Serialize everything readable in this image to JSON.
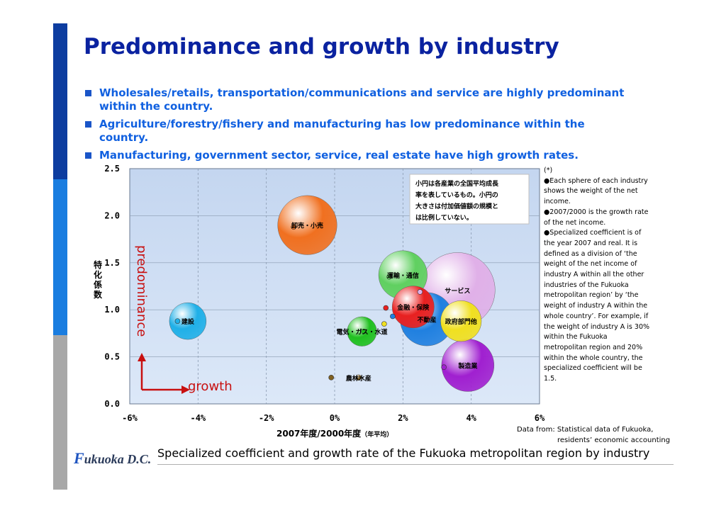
{
  "title": "Predominance and growth by industry",
  "bullets": [
    "Wholesales/retails, transportation/communications and service are highly predominant within the country.",
    "Agriculture/forestry/fishery and manufacturing has low predominance within the country.",
    "Manufacturing, government sector, service, real estate have high growth rates."
  ],
  "chart_data": {
    "type": "scatter",
    "xlabel": "2007年度/2000年度",
    "xlabel_suffix": "（年平均）",
    "ylabel": "特化係数",
    "xlim": [
      -6,
      6
    ],
    "ylim": [
      0.0,
      2.5
    ],
    "x_ticks": [
      "-6%",
      "-4%",
      "-2%",
      "0%",
      "2%",
      "4%",
      "6%"
    ],
    "y_ticks": [
      "0.0",
      "0.5",
      "1.0",
      "1.5",
      "2.0",
      "2.5"
    ],
    "grid": true,
    "inset_note": "小円は各産業の全国平均成長率を表しているもの。小円の大きさは付加価値額の規模とは比例していない。",
    "axis_annotation_x": "growth",
    "axis_annotation_y": "predominance",
    "bubbles": [
      {
        "name": "卸売・小売",
        "x": -0.8,
        "y": 1.9,
        "weight": 3.2,
        "color": "#f07020",
        "nat_x": -1.2,
        "nat_y": 1.88
      },
      {
        "name": "建設",
        "x": -4.3,
        "y": 0.88,
        "weight": 1.0,
        "color": "#20b0e8",
        "nat_x": -4.6,
        "nat_y": 0.88
      },
      {
        "name": "運輸・通信",
        "x": 2.0,
        "y": 1.37,
        "weight": 2.0,
        "color": "#60d060",
        "nat_x": 1.6,
        "nat_y": 1.35
      },
      {
        "name": "金融・保険",
        "x": 2.3,
        "y": 1.03,
        "weight": 1.4,
        "color": "#e82020",
        "nat_x": 1.5,
        "nat_y": 1.02
      },
      {
        "name": "サービス",
        "x": 3.6,
        "y": 1.21,
        "weight": 5.5,
        "color": "#e0b0e8",
        "nat_x": 2.5,
        "nat_y": 1.19
      },
      {
        "name": "不動産",
        "x": 2.7,
        "y": 0.9,
        "weight": 2.5,
        "color": "#2080e0",
        "nat_x": 1.7,
        "nat_y": 0.93
      },
      {
        "name": "政府部門他",
        "x": 3.7,
        "y": 0.88,
        "weight": 1.3,
        "color": "#f0e020",
        "nat_x": 1.45,
        "nat_y": 0.85
      },
      {
        "name": "電気・ガス・水道",
        "x": 0.8,
        "y": 0.77,
        "weight": 0.55,
        "color": "#20c020",
        "nat_x": 0.85,
        "nat_y": 0.77
      },
      {
        "name": "製造業",
        "x": 3.9,
        "y": 0.41,
        "weight": 2.4,
        "color": "#a020d0",
        "nat_x": 3.2,
        "nat_y": 0.39
      },
      {
        "name": "農林水産",
        "x": 0.7,
        "y": 0.28,
        "weight": 0.1,
        "color": "#806020",
        "nat_x": -0.1,
        "nat_y": 0.28
      }
    ]
  },
  "notes": [
    "(*)",
    "●Each sphere of each industry shows the weight of the net income.",
    "●2007/2000 is the growth rate of the net income.",
    "●Specialized coefficient is of the year 2007 and real. It is defined as a division of ‘the weight of the net income of industry A within all the other industries of the Fukuoka metropolitan region’ by ‘the weight of industry A within the whole country’. For example, if the weight of industry A is 30% within the Fukuoka metropolitan region and 20% within the whole country, the specialized coefficient will be 1.5."
  ],
  "source_line1": "Data from: Statistical data of Fukuoka,",
  "source_line2": "residents’ economic accounting",
  "caption": "Specialized coefficient and growth rate of the Fukuoka metropolitan region by industry",
  "logo": {
    "initial": "F",
    "rest": "ukuoka D.C."
  }
}
